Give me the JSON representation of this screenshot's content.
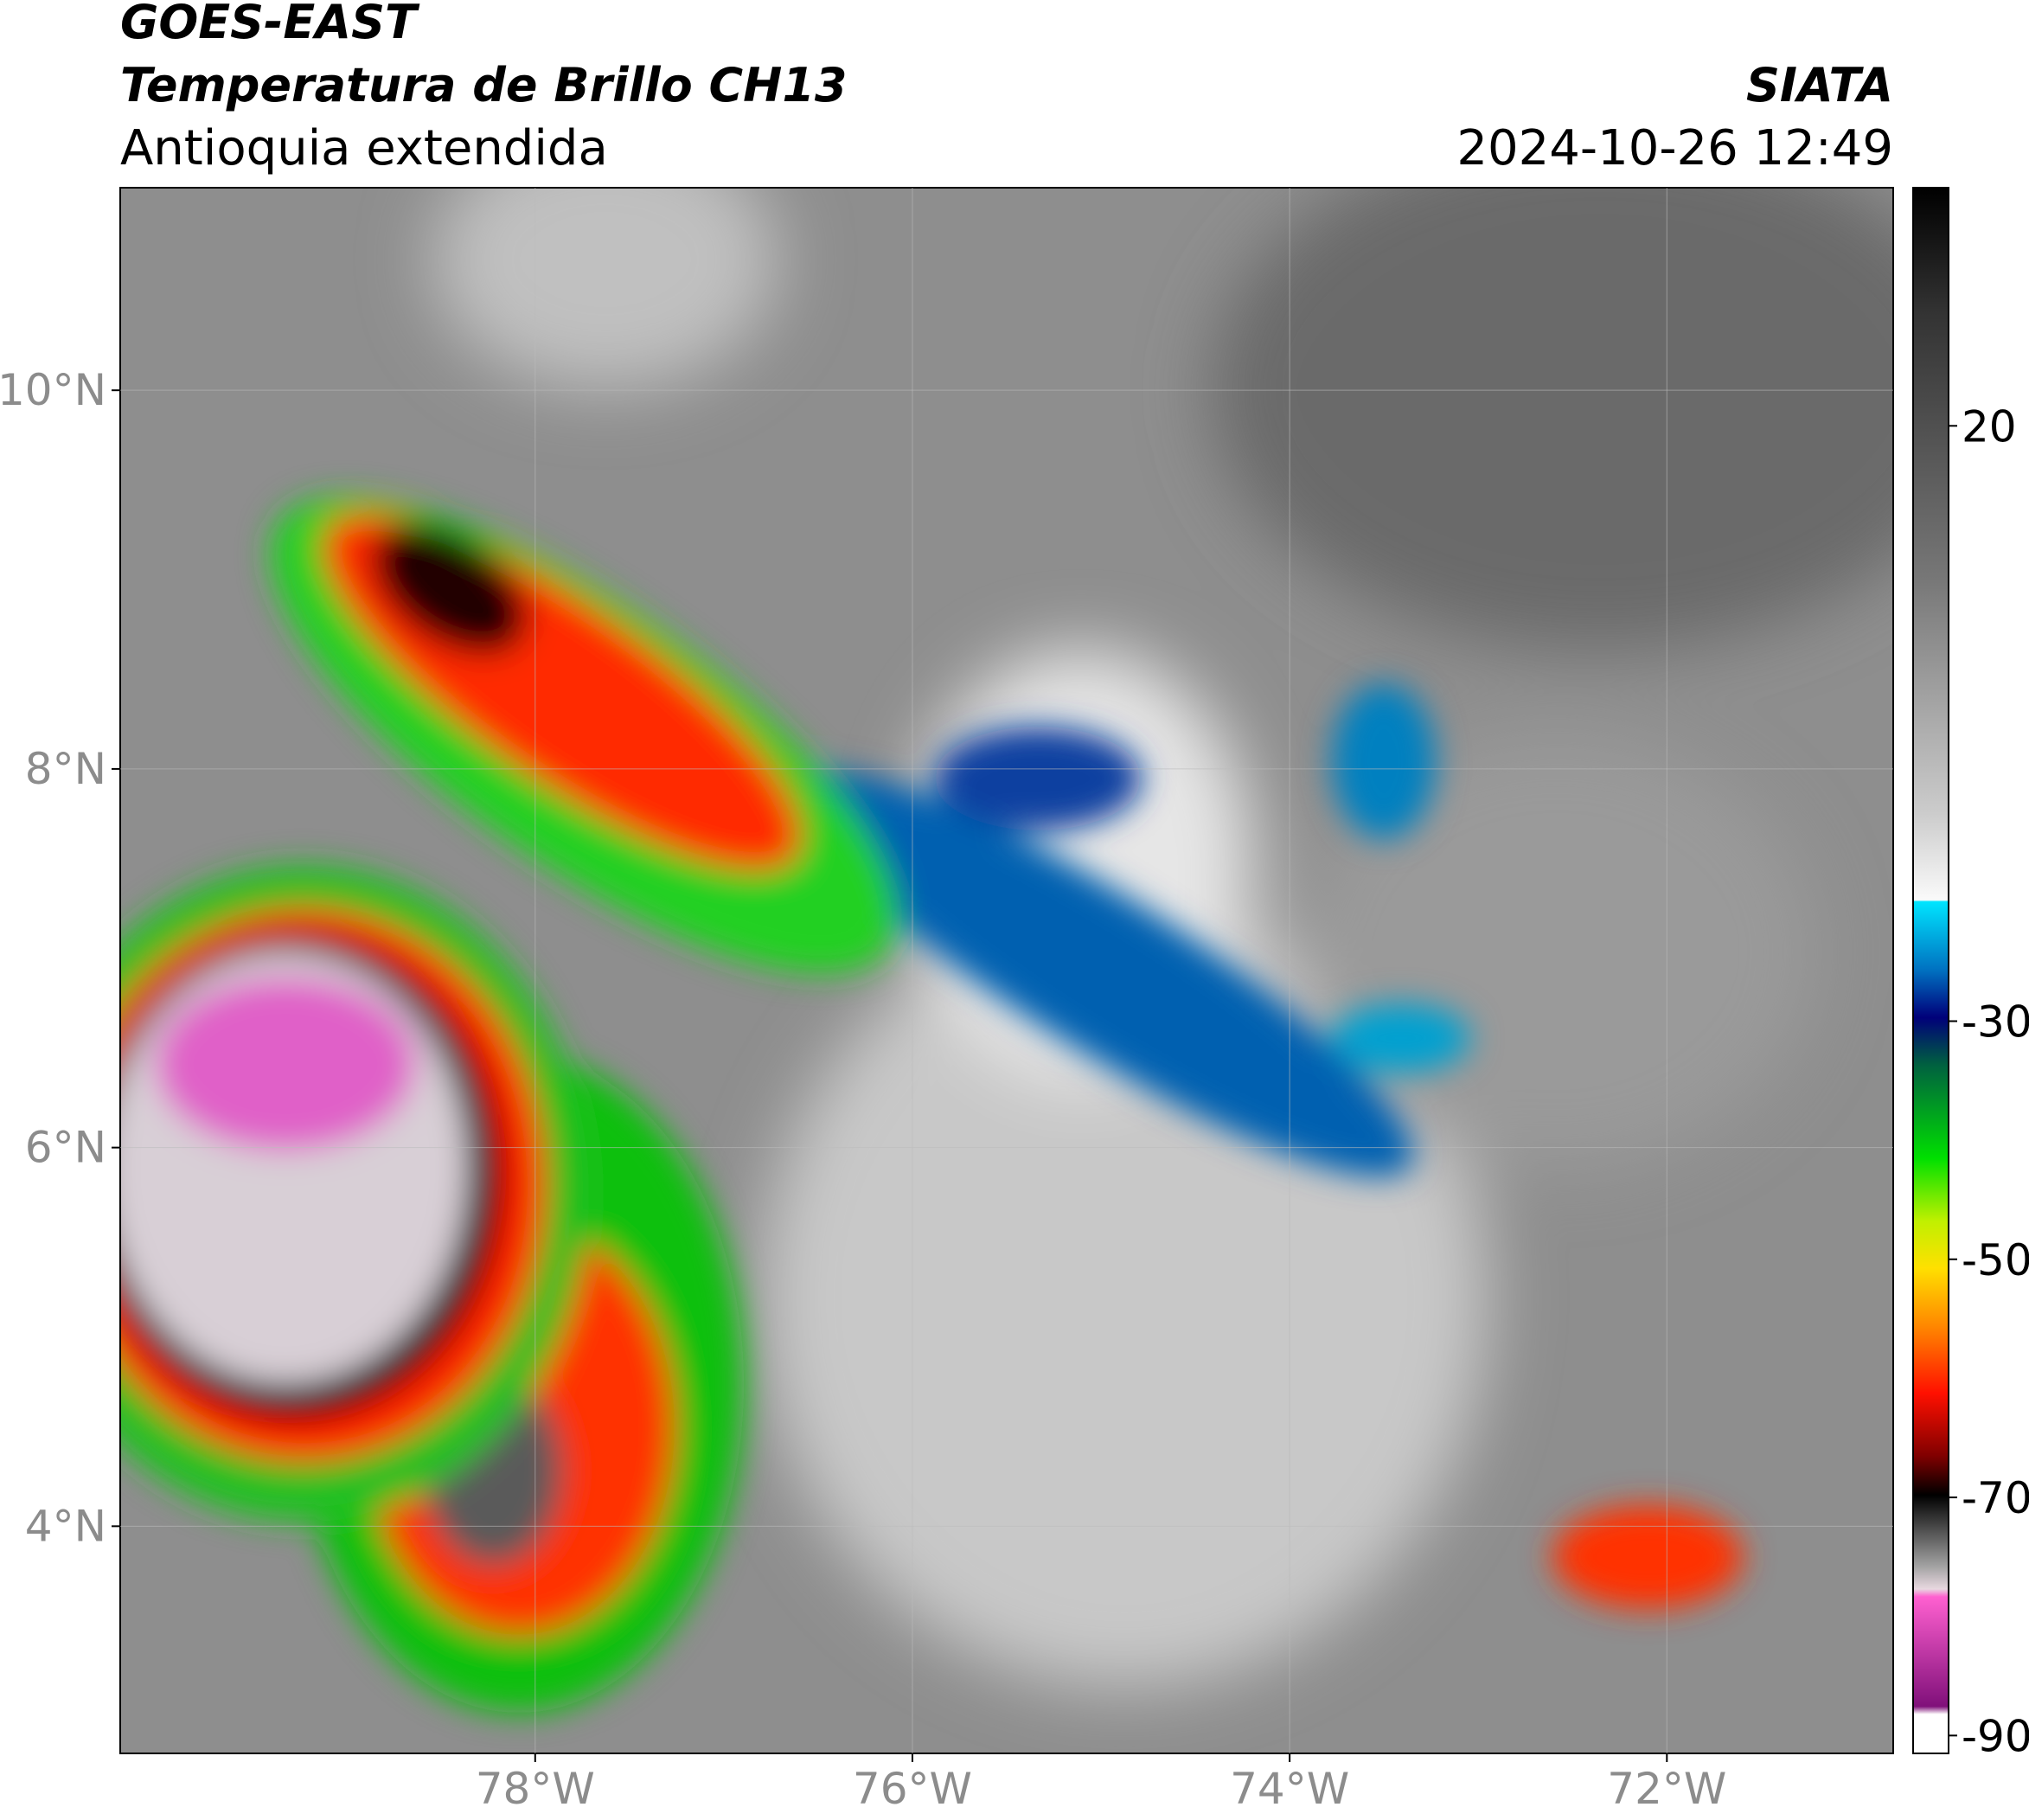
{
  "header": {
    "satellite": "GOES-EAST",
    "product": "Temperatura de Brillo CH13",
    "region": "Antioquia extendida",
    "agency": "SIATA",
    "datetime": "2024-10-26 12:49"
  },
  "map": {
    "xlim": [
      -80.2,
      -70.8
    ],
    "ylim": [
      2.8,
      11.07
    ],
    "xticks": [
      {
        "value": -78,
        "label": "78°W"
      },
      {
        "value": -76,
        "label": "76°W"
      },
      {
        "value": -74,
        "label": "74°W"
      },
      {
        "value": -72,
        "label": "72°W"
      }
    ],
    "yticks": [
      {
        "value": 10,
        "label": "10°N"
      },
      {
        "value": 8,
        "label": "8°N"
      },
      {
        "value": 6,
        "label": "6°N"
      },
      {
        "value": 4,
        "label": "4°N"
      }
    ],
    "grid": true
  },
  "colorbar": {
    "lim": [
      -91.5,
      40
    ],
    "ticks": [
      20,
      -30,
      -50,
      -70,
      -90
    ]
  }
}
